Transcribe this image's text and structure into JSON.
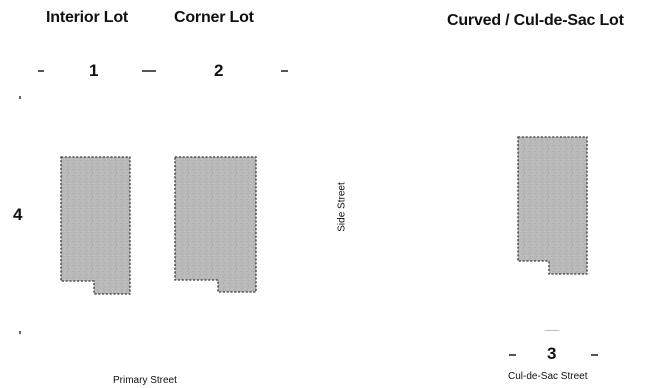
{
  "headings": {
    "interior_lot": "Interior Lot",
    "corner_lot": "Corner Lot",
    "curved_lot": "Curved / Cul-de-Sac Lot"
  },
  "setback_numbers": {
    "n1": "1",
    "n2": "2",
    "n3": "3",
    "n4": "4"
  },
  "streets": {
    "primary": "Primary Street",
    "side": "Side Street",
    "cul_de_sac": "Cul-de-Sac Street"
  },
  "colors": {
    "footprint_fill": "#b8b8b8",
    "footprint_outline": "#3a3a3a",
    "text": "#111111"
  }
}
